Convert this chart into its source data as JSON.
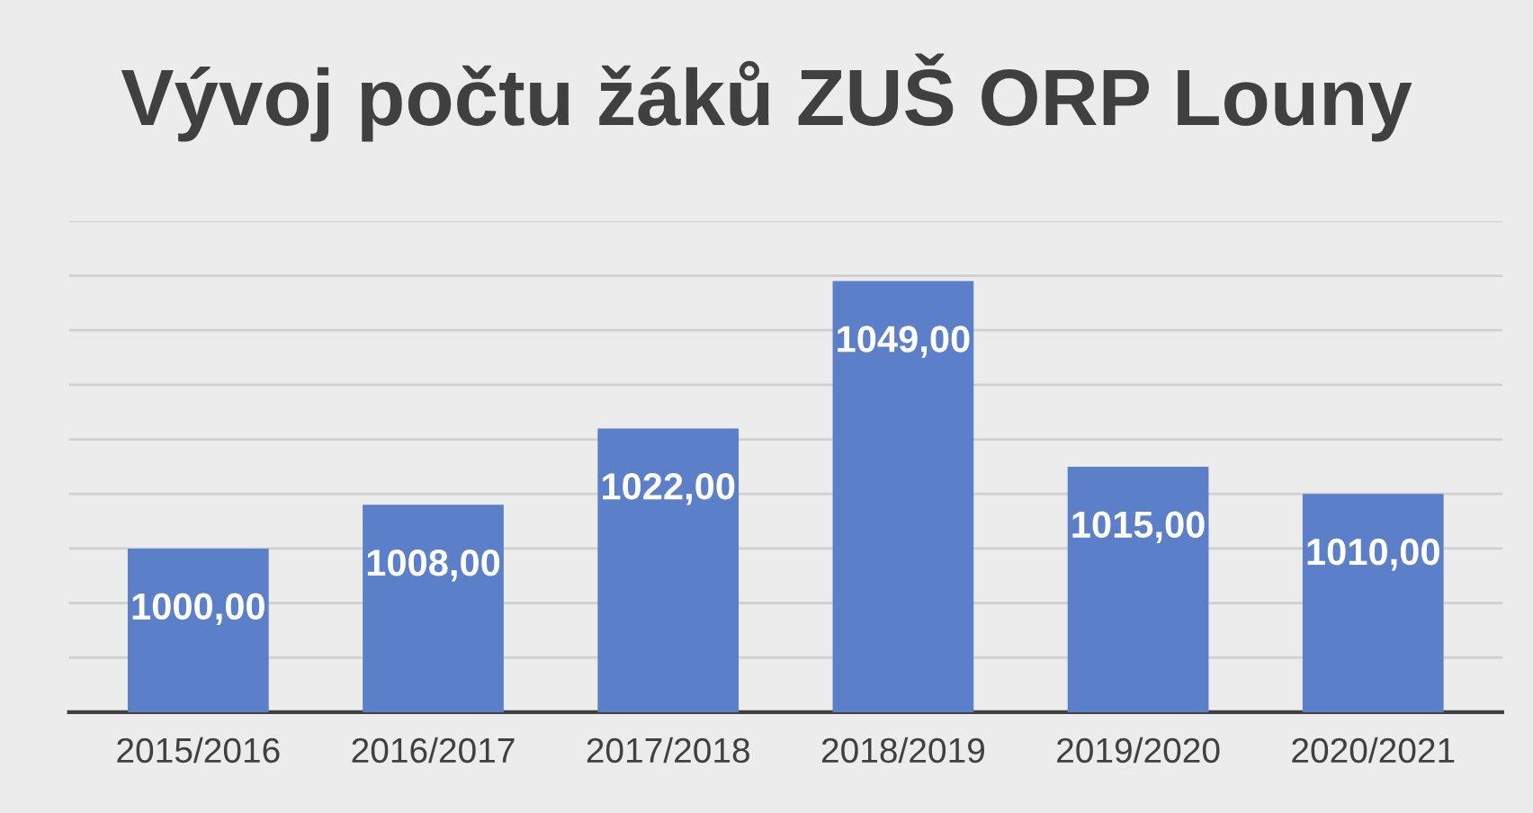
{
  "chart_data": {
    "type": "bar",
    "title": "Vývoj počtu žáků ZUŠ ORP Louny",
    "categories": [
      "2015/2016",
      "2016/2017",
      "2017/2018",
      "2018/2019",
      "2019/2020",
      "2020/2021"
    ],
    "values": [
      1000,
      1008,
      1022,
      1049,
      1015,
      1010
    ],
    "value_labels": [
      "1000,00",
      "1008,00",
      "1022,00",
      "1049,00",
      "1015,00",
      "1010,00"
    ],
    "color": "#5b7fc8",
    "ylim": [
      970,
      1060
    ],
    "yticks": [
      {
        "value": 970,
        "label": null
      },
      {
        "value": 980,
        "label": null
      },
      {
        "value": 990,
        "label": null
      },
      {
        "value": 1000,
        "label": null
      },
      {
        "value": 1010,
        "label": null
      },
      {
        "value": 1020,
        "label": null
      },
      {
        "value": 1030,
        "label": null
      },
      {
        "value": 1040,
        "label": null
      },
      {
        "value": 1050,
        "label": null
      },
      {
        "value": 1060,
        "label": null
      }
    ],
    "tick_labels": "x",
    "grid": "y",
    "legend": false
  }
}
